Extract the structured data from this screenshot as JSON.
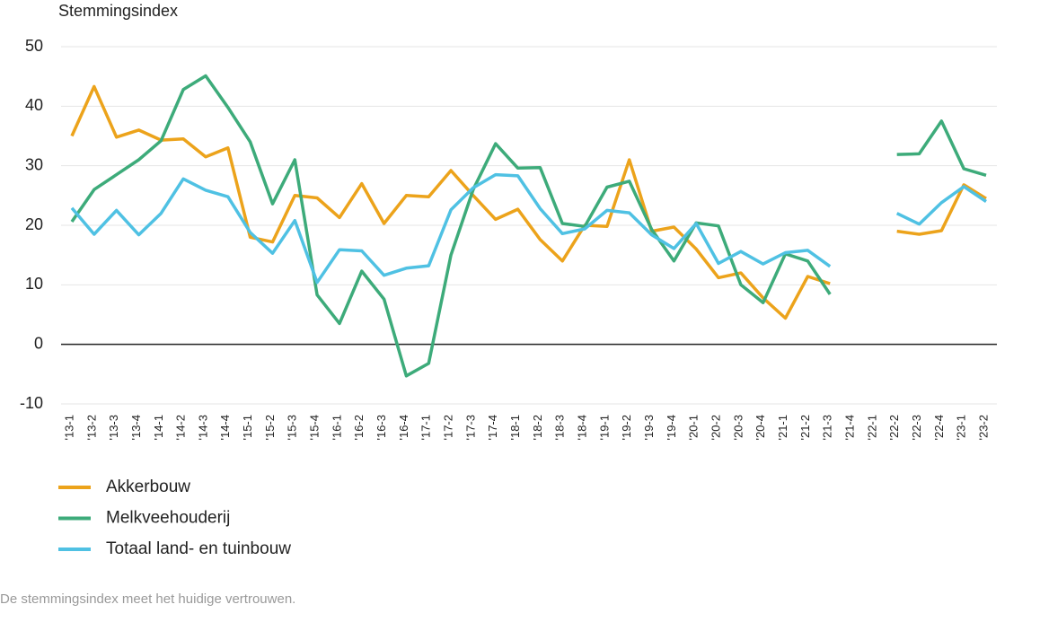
{
  "chart_data": {
    "type": "line",
    "y_label": "Stemmingsindex",
    "note": "De stemmingsindex meet het huidige vertrouwen.",
    "categories": [
      "'13-1",
      "'13-2",
      "'13-3",
      "'13-4",
      "'14-1",
      "'14-2",
      "'14-3",
      "'14-4",
      "'15-1",
      "'15-2",
      "'15-3",
      "'15-4",
      "'16-1",
      "'16-2",
      "'16-3",
      "'16-4",
      "'17-1",
      "'17-2",
      "'17-3",
      "'17-4",
      "'18-1",
      "'18-2",
      "'18-3",
      "'18-4",
      "'19-1",
      "'19-2",
      "'19-3",
      "'19-4",
      "'20-1",
      "'20-2",
      "'20-3",
      "'20-4",
      "'21-1",
      "'21-2",
      "'21-3",
      "'21-4",
      "'22-1",
      "'22-2",
      "'22-3",
      "'22-4",
      "'23-1",
      "'23-2"
    ],
    "series": [
      {
        "name": "Akkerbouw",
        "color": "#eca31b",
        "values": [
          35,
          43.3,
          34.8,
          36,
          34.3,
          34.5,
          31.5,
          33,
          18,
          17.2,
          25,
          24.6,
          21.3,
          27,
          20.3,
          25,
          24.8,
          29.2,
          25,
          21,
          22.7,
          17.6,
          14,
          20,
          19.8,
          31,
          19,
          19.7,
          16,
          11.2,
          12,
          7.8,
          4.4,
          11.4,
          10.2,
          null,
          null,
          19,
          18.5,
          19.1,
          26.8,
          24.5
        ]
      },
      {
        "name": "Melkveehouderij",
        "color": "#3dab7a",
        "values": [
          20.6,
          26,
          28.5,
          31,
          34.2,
          42.8,
          45.1,
          39.8,
          34,
          23.6,
          31,
          8.3,
          3.5,
          12.3,
          7.6,
          -5.3,
          -3.2,
          15,
          26,
          33.7,
          29.6,
          29.7,
          20.3,
          19.8,
          26.4,
          27.4,
          19.3,
          14,
          20.4,
          19.9,
          10,
          7,
          15.2,
          14,
          8.4,
          null,
          null,
          31.9,
          32,
          37.5,
          29.5,
          28.4
        ]
      },
      {
        "name": "Totaal land- en tuinbouw",
        "color": "#4fc1e3",
        "values": [
          22.9,
          18.5,
          22.5,
          18.4,
          22,
          27.8,
          25.9,
          24.8,
          18.8,
          15.3,
          20.8,
          10.4,
          15.9,
          15.7,
          11.6,
          12.8,
          13.2,
          22.6,
          26.3,
          28.5,
          28.3,
          22.8,
          18.6,
          19.4,
          22.5,
          22.1,
          18.4,
          16.1,
          20.3,
          13.6,
          15.6,
          13.5,
          15.4,
          15.8,
          13.1,
          null,
          null,
          22,
          20.2,
          23.8,
          26.5,
          24
        ]
      }
    ],
    "ylim": [
      -10,
      50
    ],
    "yticks": [
      -10,
      0,
      10,
      20,
      30,
      40,
      50
    ],
    "grid": true,
    "legend": "bottom"
  }
}
